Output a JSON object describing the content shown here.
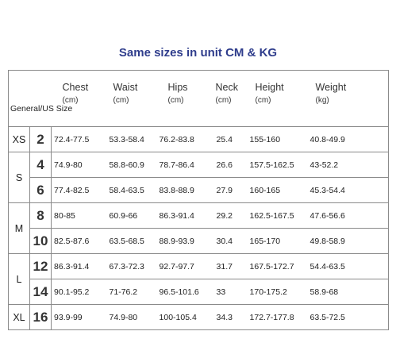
{
  "title": "Same sizes in unit CM & KG",
  "header": {
    "general": "General/US Size",
    "columns": [
      {
        "name": "Chest",
        "unit": "(cm)"
      },
      {
        "name": "Waist",
        "unit": "(cm)"
      },
      {
        "name": "Hips",
        "unit": "(cm)"
      },
      {
        "name": "Neck",
        "unit": "(cm)"
      },
      {
        "name": "Height",
        "unit": "(cm)"
      },
      {
        "name": "Weight",
        "unit": "(kg)"
      }
    ]
  },
  "groups": [
    {
      "letter": "XS",
      "rows": [
        {
          "size": "2",
          "values": [
            "72.4-77.5",
            "53.3-58.4",
            "76.2-83.8",
            "25.4",
            "155-160",
            "40.8-49.9"
          ]
        }
      ]
    },
    {
      "letter": "S",
      "rows": [
        {
          "size": "4",
          "values": [
            "74.9-80",
            "58.8-60.9",
            "78.7-86.4",
            "26.6",
            "157.5-162.5",
            "43-52.2"
          ]
        },
        {
          "size": "6",
          "values": [
            "77.4-82.5",
            "58.4-63.5",
            "83.8-88.9",
            "27.9",
            "160-165",
            "45.3-54.4"
          ]
        }
      ]
    },
    {
      "letter": "M",
      "rows": [
        {
          "size": "8",
          "values": [
            "80-85",
            "60.9-66",
            "86.3-91.4",
            "29.2",
            "162.5-167.5",
            "47.6-56.6"
          ]
        },
        {
          "size": "10",
          "values": [
            "82.5-87.6",
            "63.5-68.5",
            "88.9-93.9",
            "30.4",
            "165-170",
            "49.8-58.9"
          ]
        }
      ]
    },
    {
      "letter": "L",
      "rows": [
        {
          "size": "12",
          "values": [
            "86.3-91.4",
            "67.3-72.3",
            "92.7-97.7",
            "31.7",
            "167.5-172.7",
            "54.4-63.5"
          ]
        },
        {
          "size": "14",
          "values": [
            "90.1-95.2",
            "71-76.2",
            "96.5-101.6",
            "33",
            "170-175.2",
            "58.9-68"
          ]
        }
      ]
    },
    {
      "letter": "XL",
      "rows": [
        {
          "size": "16",
          "values": [
            "93.9-99",
            "74.9-80",
            "100-105.4",
            "34.3",
            "172.7-177.8",
            "63.5-72.5"
          ]
        }
      ]
    }
  ]
}
